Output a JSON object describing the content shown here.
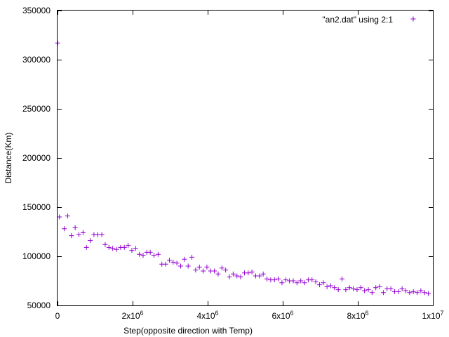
{
  "chart_data": {
    "type": "scatter",
    "xlabel": "Step(opposite direction with Temp)",
    "ylabel": "Distance(Km)",
    "xlim": [
      0,
      10000000
    ],
    "ylim": [
      50000,
      350000
    ],
    "x_ticks": [
      {
        "value": 0,
        "base": "0",
        "exp": ""
      },
      {
        "value": 2000000,
        "base": "2x10",
        "exp": "6"
      },
      {
        "value": 4000000,
        "base": "4x10",
        "exp": "6"
      },
      {
        "value": 6000000,
        "base": "6x10",
        "exp": "6"
      },
      {
        "value": 8000000,
        "base": "8x10",
        "exp": "6"
      },
      {
        "value": 10000000,
        "base": "1x10",
        "exp": "7"
      }
    ],
    "y_ticks": [
      {
        "value": 50000,
        "label": "50000"
      },
      {
        "value": 100000,
        "label": "100000"
      },
      {
        "value": 150000,
        "label": "150000"
      },
      {
        "value": 200000,
        "label": "200000"
      },
      {
        "value": 250000,
        "label": "250000"
      },
      {
        "value": 300000,
        "label": "300000"
      },
      {
        "value": 350000,
        "label": "350000"
      }
    ],
    "grid": false,
    "legend_position": "top-right",
    "series": [
      {
        "name": "\"an2.dat\" using 2:1",
        "color": "#9400d3",
        "marker": "plus",
        "points": [
          [
            0,
            317000
          ],
          [
            50000,
            140000
          ],
          [
            180000,
            128000
          ],
          [
            270000,
            141000
          ],
          [
            370000,
            121000
          ],
          [
            470000,
            129000
          ],
          [
            570000,
            122000
          ],
          [
            680000,
            124000
          ],
          [
            770000,
            109000
          ],
          [
            870000,
            116000
          ],
          [
            970000,
            122000
          ],
          [
            1070000,
            122000
          ],
          [
            1180000,
            122000
          ],
          [
            1270000,
            112000
          ],
          [
            1370000,
            109000
          ],
          [
            1470000,
            108000
          ],
          [
            1570000,
            107000
          ],
          [
            1680000,
            109000
          ],
          [
            1780000,
            109000
          ],
          [
            1880000,
            111000
          ],
          [
            1980000,
            106000
          ],
          [
            2080000,
            108000
          ],
          [
            2180000,
            102000
          ],
          [
            2280000,
            101000
          ],
          [
            2380000,
            104000
          ],
          [
            2470000,
            104000
          ],
          [
            2570000,
            101000
          ],
          [
            2680000,
            102000
          ],
          [
            2780000,
            92000
          ],
          [
            2880000,
            92000
          ],
          [
            2980000,
            96000
          ],
          [
            3080000,
            94000
          ],
          [
            3180000,
            93000
          ],
          [
            3280000,
            90000
          ],
          [
            3380000,
            97000
          ],
          [
            3480000,
            90000
          ],
          [
            3580000,
            99000
          ],
          [
            3680000,
            86000
          ],
          [
            3780000,
            89000
          ],
          [
            3880000,
            85000
          ],
          [
            3980000,
            89000
          ],
          [
            4080000,
            85000
          ],
          [
            4180000,
            85000
          ],
          [
            4280000,
            82000
          ],
          [
            4380000,
            88000
          ],
          [
            4480000,
            86000
          ],
          [
            4580000,
            79000
          ],
          [
            4680000,
            82000
          ],
          [
            4780000,
            80000
          ],
          [
            4880000,
            79000
          ],
          [
            4980000,
            83000
          ],
          [
            5080000,
            83000
          ],
          [
            5180000,
            84000
          ],
          [
            5280000,
            80000
          ],
          [
            5380000,
            80000
          ],
          [
            5480000,
            82000
          ],
          [
            5580000,
            77000
          ],
          [
            5680000,
            76000
          ],
          [
            5780000,
            76000
          ],
          [
            5880000,
            77000
          ],
          [
            5980000,
            73000
          ],
          [
            6080000,
            76000
          ],
          [
            6180000,
            75000
          ],
          [
            6280000,
            75000
          ],
          [
            6380000,
            73000
          ],
          [
            6480000,
            75000
          ],
          [
            6580000,
            73000
          ],
          [
            6680000,
            76000
          ],
          [
            6780000,
            76000
          ],
          [
            6880000,
            74000
          ],
          [
            6980000,
            71000
          ],
          [
            7080000,
            73000
          ],
          [
            7180000,
            69000
          ],
          [
            7280000,
            70000
          ],
          [
            7380000,
            68000
          ],
          [
            7480000,
            66000
          ],
          [
            7580000,
            77000
          ],
          [
            7680000,
            66000
          ],
          [
            7780000,
            68000
          ],
          [
            7880000,
            67000
          ],
          [
            7980000,
            66000
          ],
          [
            8080000,
            68000
          ],
          [
            8180000,
            65000
          ],
          [
            8280000,
            66000
          ],
          [
            8380000,
            63000
          ],
          [
            8480000,
            68000
          ],
          [
            8580000,
            69000
          ],
          [
            8680000,
            63000
          ],
          [
            8780000,
            67000
          ],
          [
            8880000,
            67000
          ],
          [
            8980000,
            64000
          ],
          [
            9080000,
            64000
          ],
          [
            9180000,
            67000
          ],
          [
            9280000,
            65000
          ],
          [
            9380000,
            63000
          ],
          [
            9480000,
            64000
          ],
          [
            9580000,
            63000
          ],
          [
            9680000,
            65000
          ],
          [
            9780000,
            63000
          ],
          [
            9880000,
            62000
          ]
        ]
      }
    ]
  }
}
